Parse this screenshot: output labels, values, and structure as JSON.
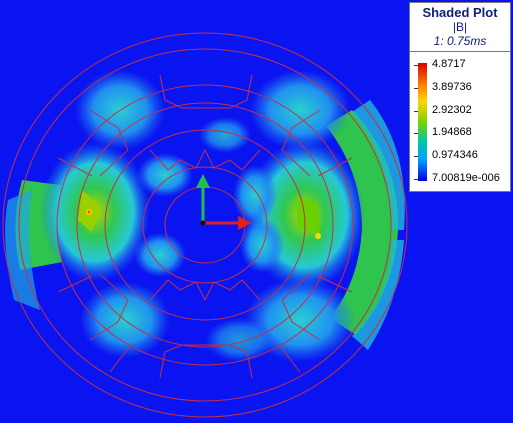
{
  "legend": {
    "title": "Shaded Plot",
    "quantity": "|B|",
    "time": "1: 0.75ms",
    "levels": [
      "4.8717",
      "3.89736",
      "2.92302",
      "1.94868",
      "0.974346",
      "7.00819e-006"
    ],
    "colors": [
      "#d40000",
      "#ff7a00",
      "#ffd400",
      "#7ad400",
      "#00b4d8",
      "#0000e0"
    ]
  },
  "plot": {
    "background_color": "#0a14f0",
    "outline_color": "#c0304a",
    "axis_y_color": "#22c04a",
    "axis_x_color": "#e02020",
    "field_low_color": "#1f6ef0",
    "field_mid_color": "#2ad0d0",
    "field_high_color": "#30c850"
  }
}
